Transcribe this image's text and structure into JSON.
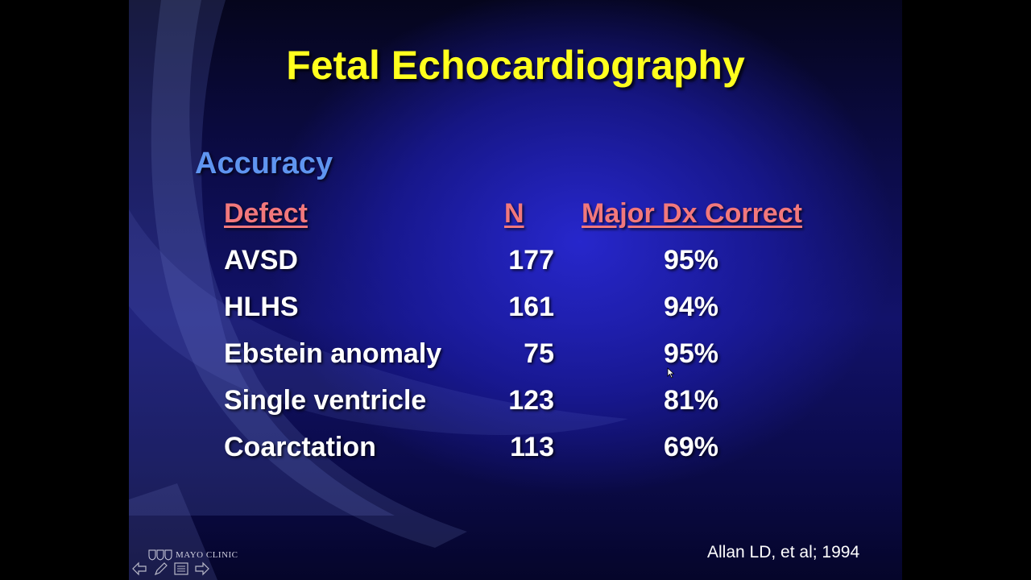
{
  "slide": {
    "title": "Fetal Echocardiography",
    "subtitle": "Accuracy",
    "table": {
      "headers": {
        "defect": "Defect",
        "n": "N",
        "correct": "Major Dx Correct"
      },
      "rows": [
        {
          "defect": "AVSD",
          "n": "177",
          "correct": "95%"
        },
        {
          "defect": "HLHS",
          "n": "161",
          "correct": "94%"
        },
        {
          "defect": "Ebstein anomaly",
          "n": "75",
          "correct": "95%"
        },
        {
          "defect": "Single ventricle",
          "n": "123",
          "correct": "81%"
        },
        {
          "defect": "Coarctation",
          "n": "113",
          "correct": "69%"
        }
      ]
    },
    "citation": "Allan LD, et al; 1994",
    "logo": {
      "text": "MAYO CLINIC",
      "icon": "mayo-shields-icon"
    }
  },
  "navigation": {
    "icons": [
      "arrow-left-icon",
      "pen-icon",
      "menu-icon",
      "arrow-right-icon"
    ]
  },
  "colors": {
    "title": "#ffff1e",
    "subtitle": "#5f95f0",
    "header": "#f2787c",
    "body_text": "#ffffff",
    "background": "#12126a"
  }
}
